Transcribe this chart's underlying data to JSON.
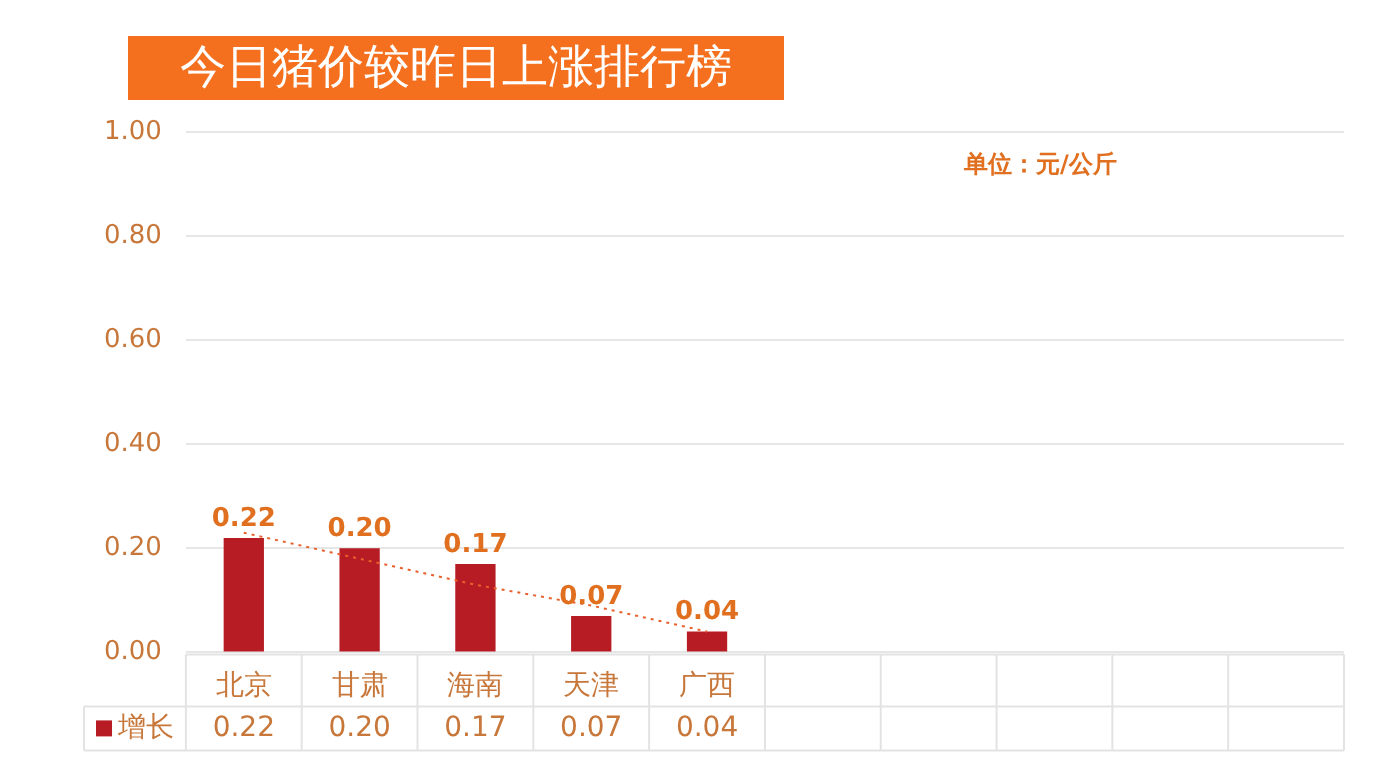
{
  "chart_data": {
    "type": "bar",
    "title": "今日猪价较昨日上涨排行榜",
    "annotations": [
      "单位：元/公斤"
    ],
    "categories": [
      "北京",
      "甘肃",
      "海南",
      "天津",
      "广西",
      null,
      null,
      null,
      null,
      null
    ],
    "series": [
      {
        "name": "增长",
        "color": "#b71c24",
        "values": [
          0.22,
          0.2,
          0.17,
          0.07,
          0.04,
          null,
          null,
          null,
          null,
          null
        ],
        "value_labels": [
          "0.22",
          "0.20",
          "0.17",
          "0.07",
          "0.04",
          null,
          null,
          null,
          null,
          null
        ]
      },
      {
        "type": "line",
        "color": "#e8602c",
        "line_style": "dotted",
        "marker": "none",
        "values": [
          0.23,
          0.18,
          0.13,
          0.09,
          0.04,
          null,
          null,
          null,
          null,
          null
        ]
      }
    ],
    "ylim": [
      0,
      1
    ],
    "yticks": [
      {
        "value": 0,
        "label": "0.00"
      },
      {
        "value": 0.2,
        "label": "0.20"
      },
      {
        "value": 0.4,
        "label": "0.40"
      },
      {
        "value": 0.6,
        "label": "0.60"
      },
      {
        "value": 0.8,
        "label": "0.80"
      },
      {
        "value": 1,
        "label": "1.00"
      }
    ],
    "grid": "y",
    "legend": "bottom"
  }
}
